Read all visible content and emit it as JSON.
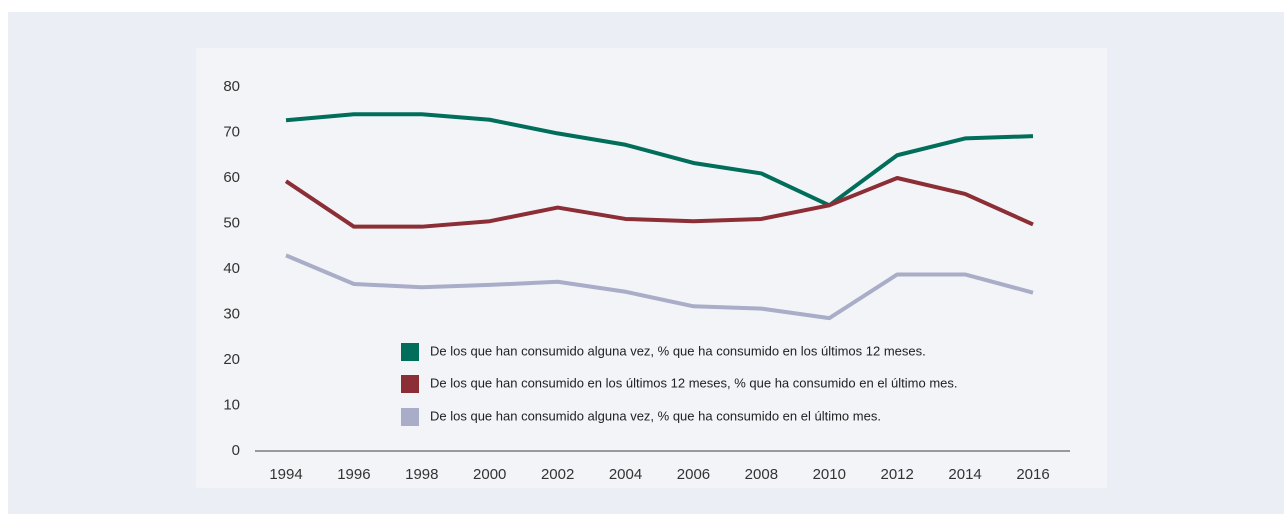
{
  "chart_data": {
    "type": "line",
    "x": [
      1994,
      1996,
      1998,
      2000,
      2002,
      2004,
      2006,
      2008,
      2010,
      2012,
      2014,
      2016
    ],
    "xlim": [
      1994,
      2016
    ],
    "xticks": [
      1994,
      1996,
      1998,
      2000,
      2002,
      2004,
      2006,
      2008,
      2010,
      2012,
      2014,
      2016
    ],
    "ylim": [
      0,
      80
    ],
    "yticks": [
      0,
      10,
      20,
      30,
      40,
      50,
      60,
      70,
      80
    ],
    "grid": false,
    "series": [
      {
        "name": "De los que han consumido alguna vez, % que ha consumido en los últimos 12 meses.",
        "color": "#006e5a",
        "values": [
          72.7,
          74,
          74,
          72.8,
          69.8,
          67.3,
          63.3,
          61,
          54,
          65,
          68.7,
          69.2
        ]
      },
      {
        "name": "De los que han consumido en los últimos 12 meses, % que ha consumido en el último mes.",
        "color": "#8b2e35",
        "values": [
          59.3,
          49.3,
          49.3,
          50.5,
          53.5,
          51,
          50.5,
          51,
          54,
          60,
          56.5,
          49.8
        ]
      },
      {
        "name": "De los que han consumido alguna vez, % que ha consumido en el último mes.",
        "color": "#a9adc8",
        "values": [
          43,
          36.7,
          36,
          36.5,
          37.2,
          35,
          31.8,
          31.3,
          29.2,
          38.8,
          38.8,
          34.8
        ]
      }
    ]
  }
}
